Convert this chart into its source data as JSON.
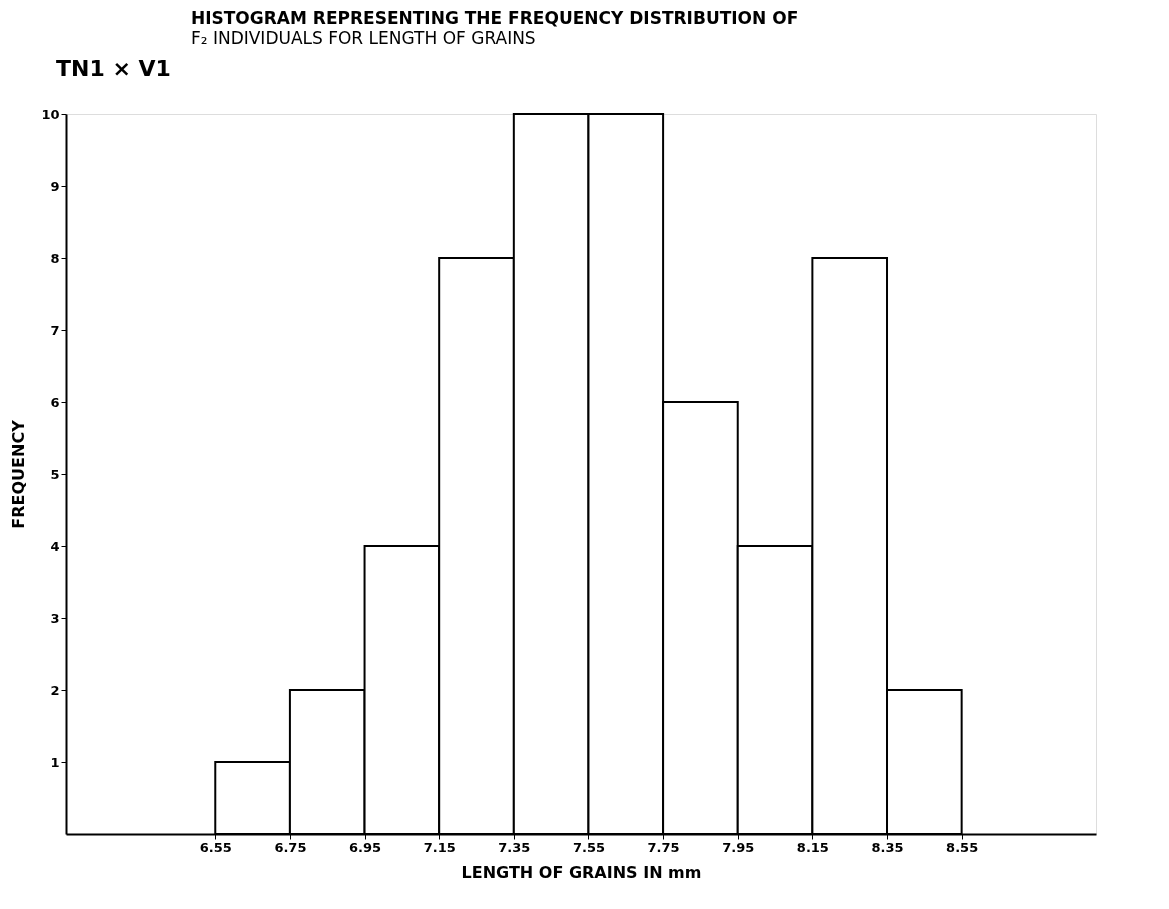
{
  "chart_data": {
    "type": "histogram",
    "title": "HISTOGRAM REPRESENTING THE FREQUENCY DISTRIBUTION OF",
    "subtitle": "F₂ INDIVIDUALS FOR LENGTH OF GRAINS",
    "annotations": [
      "TN1 × V1"
    ],
    "xlabel": "LENGTH OF GRAINS IN mm",
    "ylabel": "FREQUENCY",
    "bins": [
      6.55,
      6.75,
      6.95,
      7.15,
      7.35,
      7.55,
      7.75,
      7.95,
      8.15,
      8.35,
      8.55
    ],
    "values": [
      1,
      2,
      4,
      8,
      10,
      10,
      6,
      4,
      8,
      2
    ],
    "color": "#ffffff",
    "xlim": [
      6.15,
      8.91
    ],
    "xticks": [
      6.55,
      6.75,
      6.95,
      7.15,
      7.35,
      7.55,
      7.75,
      7.95,
      8.15,
      8.35,
      8.55
    ],
    "ylim": [
      0,
      10
    ],
    "yticks": [
      1,
      2,
      3,
      4,
      5,
      6,
      7,
      8,
      9,
      10
    ],
    "grid": false,
    "legend": false
  }
}
